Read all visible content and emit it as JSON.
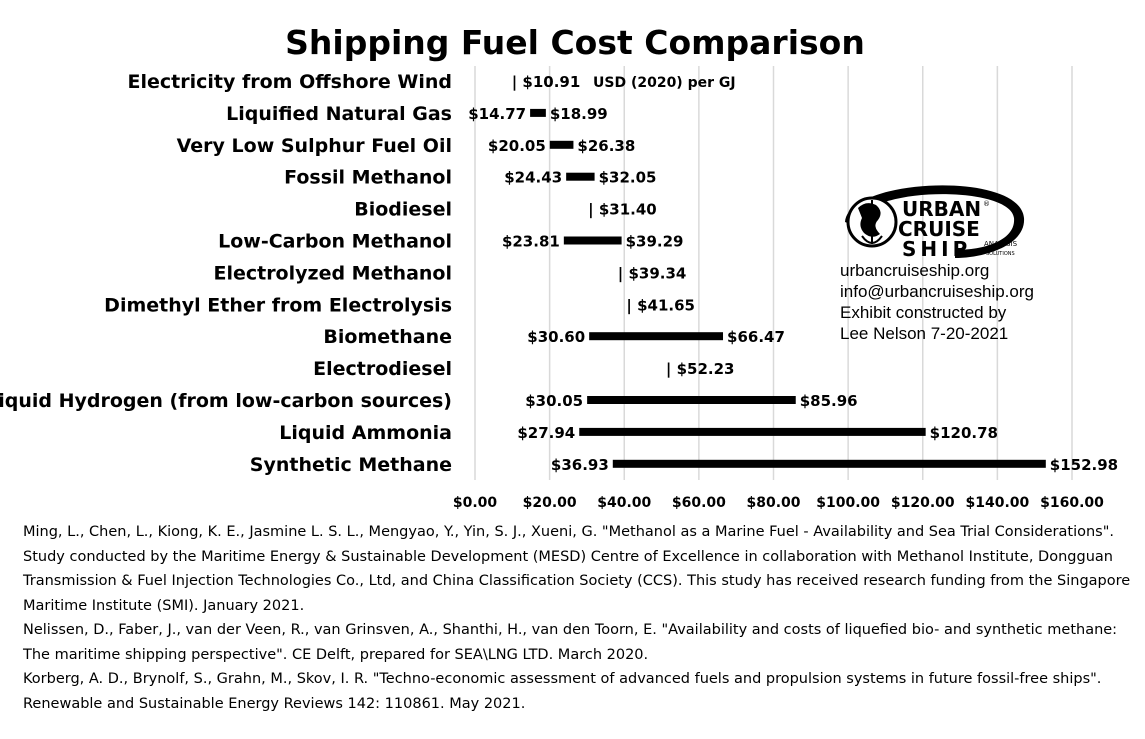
{
  "chart_data": {
    "type": "bar",
    "subtype": "floating-range",
    "title": "Shipping Fuel Cost Comparison",
    "unit_label": "USD (2020) per GJ",
    "xlim": [
      0,
      160
    ],
    "x_ticks": [
      0,
      20,
      40,
      60,
      80,
      100,
      120,
      140,
      160
    ],
    "x_tick_labels": [
      "$0.00",
      "$20.00",
      "$40.00",
      "$60.00",
      "$80.00",
      "$100.00",
      "$120.00",
      "$140.00",
      "$160.00"
    ],
    "grid": "vertical",
    "categories": [
      "Electricity from Offshore Wind",
      "Liquified Natural Gas",
      "Very Low Sulphur Fuel Oil",
      "Fossil Methanol",
      "Biodiesel",
      "Low-Carbon Methanol",
      "Electrolyzed Methanol",
      "Dimethyl Ether from Electrolysis",
      "Biomethane",
      "Electrodiesel",
      "Liquid Hydrogen (from low-carbon sources)",
      "Liquid Ammonia",
      "Synthetic Methane"
    ],
    "low": [
      10.91,
      14.77,
      20.05,
      24.43,
      31.4,
      23.81,
      39.34,
      41.65,
      30.6,
      52.23,
      30.05,
      27.94,
      36.93
    ],
    "high": [
      10.91,
      18.99,
      26.38,
      32.05,
      31.4,
      39.29,
      39.34,
      41.65,
      66.47,
      52.23,
      85.96,
      120.78,
      152.98
    ],
    "low_labels": [
      "",
      "$14.77",
      "$20.05",
      "$24.43",
      "",
      "$23.81",
      "",
      "",
      "$30.60",
      "",
      "$30.05",
      "$27.94",
      "$36.93"
    ],
    "high_labels": [
      "| $10.91",
      "$18.99",
      "$26.38",
      "$32.05",
      "| $31.40",
      "$39.29",
      "| $39.34",
      "| $41.65",
      "$66.47",
      "| $52.23",
      "$85.96",
      "$120.78",
      "$152.98"
    ],
    "bar_color": "#000000",
    "grid_color": "#d9d9d9"
  },
  "logo": {
    "name": "URBAN CRUISE SHIP",
    "line1": "URBAN",
    "line2": "CRUISE",
    "line3": "SHIP",
    "sub1": "ANALYSIS",
    "sub2": "SOLUTIONS"
  },
  "contact": {
    "website": "urbancruiseship.org",
    "email": "info@urbancruiseship.org",
    "line3": "Exhibit constructed by",
    "line4": "Lee Nelson 7-20-2021"
  },
  "references": [
    "Ming, L., Chen, L., Kiong, K. E., Jasmine L. S. L., Mengyao, Y., Yin, S. J., Xueni, G. \"Methanol as a Marine Fuel - Availability and Sea Trial Considerations\". Study conducted by the Maritime Energy & Sustainable Development (MESD) Centre of Excellence in collaboration with Methanol Institute, Dongguan Transmission & Fuel Injection Technologies Co., Ltd, and China Classification Society (CCS). This study has received research funding from the Singapore Maritime Institute (SMI). January 2021.",
    "Nelissen, D., Faber, J., van der Veen, R., van Grinsven, A., Shanthi, H., van den Toorn, E. \"Availability and costs of liquefied bio- and synthetic methane: The maritime shipping perspective\". CE Delft, prepared for SEA\\LNG LTD. March 2020.",
    "Korberg, A. D., Brynolf, S., Grahn, M., Skov, I. R. \"Techno-economic assessment of advanced fuels and propulsion systems in future fossil-free ships\". Renewable and Sustainable Energy Reviews 142: 110861. May 2021."
  ]
}
